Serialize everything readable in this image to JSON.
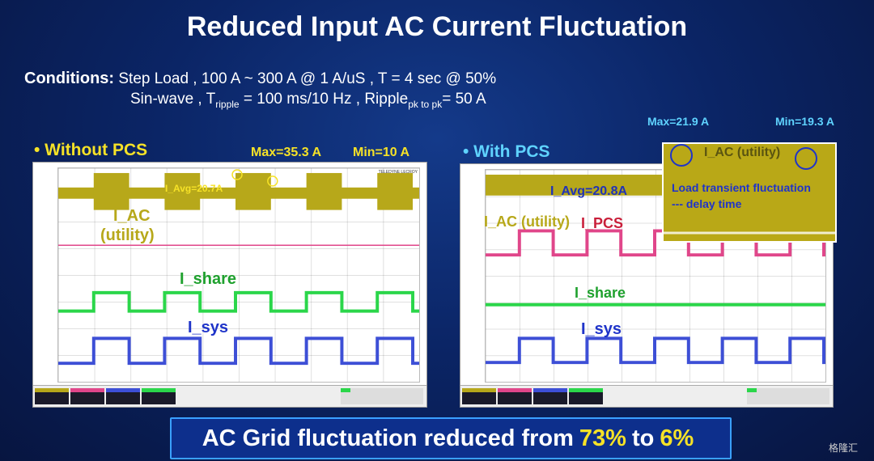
{
  "title": "Reduced Input AC Current Fluctuation",
  "conditions": {
    "label": "Conditions:",
    "line1": "Step Load , 100 A ~ 300 A @ 1 A/uS , T = 4 sec @ 50%",
    "line2_a": "Sin-wave , T",
    "line2_sub1": "ripple",
    "line2_b": " = 100 ms/10 Hz , Ripple",
    "line2_sub2": "pk to pk",
    "line2_c": "= 50 A"
  },
  "left_panel": {
    "title": "• Without PCS",
    "max_callout": "Max=35.3 A",
    "min_callout": "Min=10 A",
    "avg_label": "I_Avg=20.7A",
    "iac_label_1": "I_AC",
    "iac_label_2": "(utility)",
    "ishare_label": "I_share",
    "isys_label": "I_sys",
    "logo_text": "TELEDYNE LECROY"
  },
  "right_panel": {
    "title": "• With PCS",
    "max_callout": "Max=21.9 A",
    "min_callout": "Min=19.3 A",
    "avg_label": "I_Avg=20.8A",
    "iac_label": "I_AC (utility)",
    "ipcs_label": "I_PCS",
    "ishare_label": "I_share",
    "isys_label": "I_sys",
    "inset_title": "I_AC (utility)",
    "inset_note_1": "Load transient fluctuation",
    "inset_note_2": "--- delay time"
  },
  "banner": {
    "prefix": "AC Grid fluctuation reduced from",
    "value_before": "73%",
    "mid": "to",
    "value_after": "6%"
  },
  "watermark": "格隆汇",
  "colors": {
    "title_text": "#ffffff",
    "highlight_yellow": "#f6e227",
    "with_pcs_cyan": "#5fd3ff",
    "trace_iac": "#b7a81a",
    "trace_ipcs": "#e0468a",
    "trace_ishare": "#2bd64a",
    "trace_isys": "#3d4fd6"
  }
}
